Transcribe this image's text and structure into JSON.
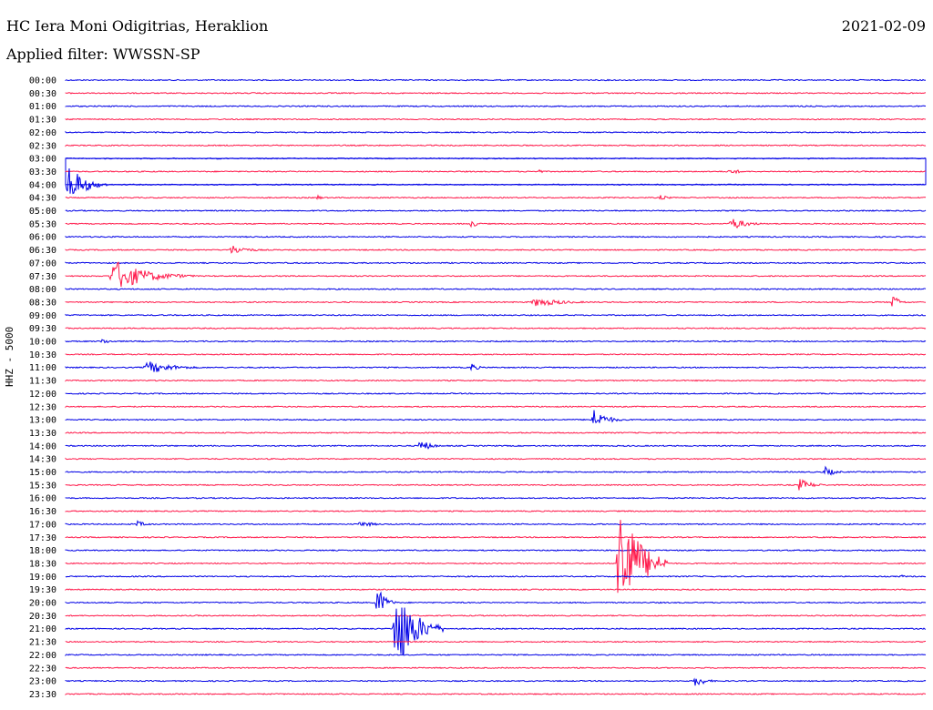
{
  "header": {
    "station": "HC Iera Moni Odigitrias, Heraklion",
    "filter": "Applied filter: WWSSN-SP",
    "date": "2021-02-09"
  },
  "axis": {
    "ylabel": "HHZ - 5000"
  },
  "colors": {
    "blue": "#0000e6",
    "red": "#ff1a4b",
    "frame": "#0000e6"
  },
  "chart_data": {
    "type": "line",
    "title": "HC Iera Moni Odigitrias, Heraklion",
    "subtitle": "Applied filter: WWSSN-SP",
    "ylabel": "HHZ - 5000",
    "row_labels": [
      "00:00",
      "00:30",
      "01:00",
      "01:30",
      "02:00",
      "02:30",
      "03:00",
      "03:30",
      "04:00",
      "04:30",
      "05:00",
      "05:30",
      "06:00",
      "06:30",
      "07:00",
      "07:30",
      "08:00",
      "08:30",
      "09:00",
      "09:30",
      "10:00",
      "10:30",
      "11:00",
      "11:30",
      "12:00",
      "12:30",
      "13:00",
      "13:30",
      "14:00",
      "14:30",
      "15:00",
      "15:30",
      "16:00",
      "16:30",
      "17:00",
      "17:30",
      "18:00",
      "18:30",
      "19:00",
      "19:30",
      "20:00",
      "20:30",
      "21:00",
      "21:30",
      "22:00",
      "22:30",
      "23:00",
      "23:30"
    ],
    "trace_colors": [
      "blue",
      "red"
    ],
    "events": [
      {
        "row": 8,
        "x": 0.0,
        "amp": 28,
        "len": 0.05
      },
      {
        "row": 7,
        "x": 0.55,
        "amp": 4,
        "len": 0.01
      },
      {
        "row": 7,
        "x": 0.77,
        "amp": 5,
        "len": 0.03
      },
      {
        "row": 9,
        "x": 0.29,
        "amp": 5,
        "len": 0.015
      },
      {
        "row": 9,
        "x": 0.69,
        "amp": 4,
        "len": 0.025
      },
      {
        "row": 11,
        "x": 0.47,
        "amp": 6,
        "len": 0.02
      },
      {
        "row": 11,
        "x": 0.77,
        "amp": 9,
        "len": 0.05
      },
      {
        "row": 13,
        "x": 0.19,
        "amp": 7,
        "len": 0.05
      },
      {
        "row": 15,
        "x": 0.05,
        "amp": 22,
        "len": 0.1
      },
      {
        "row": 17,
        "x": 0.54,
        "amp": 6,
        "len": 0.09
      },
      {
        "row": 17,
        "x": 0.96,
        "amp": 12,
        "len": 0.02
      },
      {
        "row": 20,
        "x": 0.04,
        "amp": 4,
        "len": 0.03
      },
      {
        "row": 22,
        "x": 0.09,
        "amp": 9,
        "len": 0.08
      },
      {
        "row": 22,
        "x": 0.47,
        "amp": 7,
        "len": 0.02
      },
      {
        "row": 26,
        "x": 0.61,
        "amp": 16,
        "len": 0.04
      },
      {
        "row": 28,
        "x": 0.41,
        "amp": 10,
        "len": 0.03
      },
      {
        "row": 30,
        "x": 0.88,
        "amp": 8,
        "len": 0.03
      },
      {
        "row": 31,
        "x": 0.85,
        "amp": 9,
        "len": 0.04
      },
      {
        "row": 34,
        "x": 0.08,
        "amp": 5,
        "len": 0.03
      },
      {
        "row": 34,
        "x": 0.34,
        "amp": 5,
        "len": 0.04
      },
      {
        "row": 37,
        "x": 0.64,
        "amp": 95,
        "len": 0.06
      },
      {
        "row": 38,
        "x": 0.97,
        "amp": 4,
        "len": 0.01
      },
      {
        "row": 40,
        "x": 0.36,
        "amp": 25,
        "len": 0.025
      },
      {
        "row": 42,
        "x": 0.38,
        "amp": 60,
        "len": 0.06
      },
      {
        "row": 46,
        "x": 0.73,
        "amp": 9,
        "len": 0.03
      }
    ]
  }
}
